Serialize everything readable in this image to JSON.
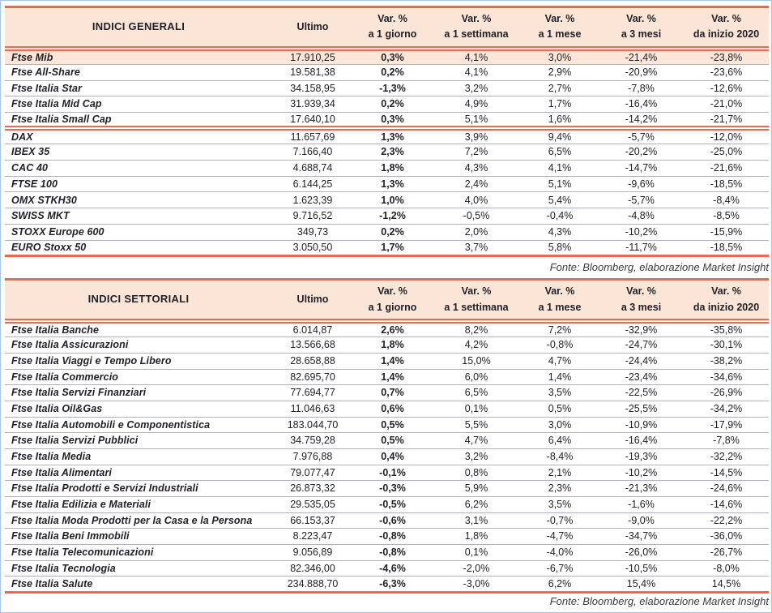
{
  "theme": {
    "accent": "#f2654f",
    "header_bg": "#fbe5d6",
    "highlight_bg": "#fbe6d8",
    "row_divider": "#aab3bf",
    "frame_border": "#a8c6e5",
    "text": "#212129",
    "source_text": "#3a3a42"
  },
  "tables": [
    {
      "title": "INDICI GENERALI",
      "headers": [
        "Ultimo",
        "Var. %\na 1 giorno",
        "Var. %\na 1 settimana",
        "Var. %\na 1 mese",
        "Var. %\na 3 mesi",
        "Var. %\nda inizio 2020"
      ],
      "source": "Fonte: Bloomberg, elaborazione Market Insight",
      "groups": [
        {
          "rows": [
            {
              "name": "Ftse Mib",
              "highlight": true,
              "values": [
                "17.910,25",
                "0,3%",
                "4,1%",
                "3,0%",
                "-21,4%",
                "-23,8%"
              ]
            },
            {
              "name": "Ftse All-Share",
              "values": [
                "19.581,38",
                "0,2%",
                "4,1%",
                "2,9%",
                "-20,9%",
                "-23,6%"
              ]
            },
            {
              "name": "Ftse Italia Star",
              "values": [
                "34.158,95",
                "-1,3%",
                "3,2%",
                "2,7%",
                "-7,8%",
                "-12,6%"
              ]
            },
            {
              "name": "Ftse Italia Mid Cap",
              "values": [
                "31.939,34",
                "0,2%",
                "4,9%",
                "1,7%",
                "-16,4%",
                "-21,0%"
              ]
            },
            {
              "name": "Ftse Italia Small Cap",
              "values": [
                "17.640,10",
                "0,3%",
                "5,1%",
                "1,6%",
                "-14,2%",
                "-21,7%"
              ]
            }
          ]
        },
        {
          "rows": [
            {
              "name": "DAX",
              "values": [
                "11.657,69",
                "1,3%",
                "3,9%",
                "9,4%",
                "-5,7%",
                "-12,0%"
              ]
            },
            {
              "name": "IBEX 35",
              "values": [
                "7.166,40",
                "2,3%",
                "7,2%",
                "6,5%",
                "-20,2%",
                "-25,0%"
              ]
            },
            {
              "name": "CAC 40",
              "values": [
                "4.688,74",
                "1,8%",
                "4,3%",
                "4,1%",
                "-14,7%",
                "-21,6%"
              ]
            },
            {
              "name": "FTSE 100",
              "values": [
                "6.144,25",
                "1,3%",
                "2,4%",
                "5,1%",
                "-9,6%",
                "-18,5%"
              ]
            },
            {
              "name": "OMX STKH30",
              "values": [
                "1.623,39",
                "1,0%",
                "4,0%",
                "5,4%",
                "-5,7%",
                "-8,4%"
              ]
            },
            {
              "name": "SWISS MKT",
              "values": [
                "9.716,52",
                "-1,2%",
                "-0,5%",
                "-0,4%",
                "-4,8%",
                "-8,5%"
              ]
            },
            {
              "name": "STOXX Europe 600",
              "values": [
                "349,73",
                "0,2%",
                "2,0%",
                "4,3%",
                "-10,2%",
                "-15,9%"
              ]
            },
            {
              "name": "EURO Stoxx 50",
              "values": [
                "3.050,50",
                "1,7%",
                "3,7%",
                "5,8%",
                "-11,7%",
                "-18,5%"
              ]
            }
          ]
        }
      ]
    },
    {
      "title": "INDICI SETTORIALI",
      "headers": [
        "Ultimo",
        "Var. %\na 1 giorno",
        "Var. %\na 1 settimana",
        "Var. %\na 1 mese",
        "Var. %\na 3 mesi",
        "Var. %\nda inizio 2020"
      ],
      "source": "Fonte: Bloomberg, elaborazione Market Insight",
      "groups": [
        {
          "rows": [
            {
              "name": "Ftse Italia Banche",
              "values": [
                "6.014,87",
                "2,6%",
                "8,2%",
                "7,2%",
                "-32,9%",
                "-35,8%"
              ]
            },
            {
              "name": "Ftse Italia Assicurazioni",
              "values": [
                "13.566,68",
                "1,8%",
                "4,2%",
                "-0,8%",
                "-24,7%",
                "-30,1%"
              ]
            },
            {
              "name": "Ftse Italia Viaggi e Tempo Libero",
              "values": [
                "28.658,88",
                "1,4%",
                "15,0%",
                "4,7%",
                "-24,4%",
                "-38,2%"
              ]
            },
            {
              "name": "Ftse Italia Commercio",
              "values": [
                "82.695,70",
                "1,4%",
                "6,0%",
                "1,4%",
                "-23,4%",
                "-34,6%"
              ]
            },
            {
              "name": "Ftse Italia Servizi Finanziari",
              "values": [
                "77.694,77",
                "0,7%",
                "6,5%",
                "3,5%",
                "-22,5%",
                "-26,9%"
              ]
            },
            {
              "name": "Ftse Italia Oil&Gas",
              "values": [
                "11.046,63",
                "0,6%",
                "0,1%",
                "0,5%",
                "-25,5%",
                "-34,2%"
              ]
            },
            {
              "name": "Ftse Italia Automobili e Componentistica",
              "values": [
                "183.044,70",
                "0,5%",
                "5,5%",
                "3,0%",
                "-10,9%",
                "-17,9%"
              ]
            },
            {
              "name": "Ftse Italia Servizi Pubblici",
              "values": [
                "34.759,28",
                "0,5%",
                "4,7%",
                "6,4%",
                "-16,4%",
                "-7,8%"
              ]
            },
            {
              "name": "Ftse Italia Media",
              "values": [
                "7.976,88",
                "0,4%",
                "3,2%",
                "-8,4%",
                "-19,3%",
                "-32,2%"
              ]
            },
            {
              "name": "Ftse Italia Alimentari",
              "values": [
                "79.077,47",
                "-0,1%",
                "0,8%",
                "2,1%",
                "-10,2%",
                "-14,5%"
              ]
            },
            {
              "name": "Ftse Italia Prodotti e Servizi Industriali",
              "values": [
                "26.873,32",
                "-0,3%",
                "5,9%",
                "2,3%",
                "-21,3%",
                "-24,6%"
              ]
            },
            {
              "name": "Ftse Italia Edilizia e Materiali",
              "values": [
                "29.535,05",
                "-0,5%",
                "6,2%",
                "3,5%",
                "-1,6%",
                "-14,6%"
              ]
            },
            {
              "name": "Ftse Italia Moda Prodotti per la Casa e la Persona",
              "values": [
                "66.153,37",
                "-0,6%",
                "3,1%",
                "-0,7%",
                "-9,0%",
                "-22,2%"
              ]
            },
            {
              "name": "Ftse Italia Beni Immobili",
              "values": [
                "8.223,47",
                "-0,8%",
                "1,8%",
                "-4,7%",
                "-34,7%",
                "-36,0%"
              ]
            },
            {
              "name": "Ftse Italia Telecomunicazioni",
              "values": [
                "9.056,89",
                "-0,8%",
                "0,1%",
                "-4,0%",
                "-26,0%",
                "-26,7%"
              ]
            },
            {
              "name": "Ftse Italia Tecnologia",
              "values": [
                "82.346,00",
                "-4,6%",
                "-2,0%",
                "-6,7%",
                "-10,5%",
                "-8,0%"
              ]
            },
            {
              "name": "Ftse Italia Salute",
              "values": [
                "234.888,70",
                "-6,3%",
                "-3,0%",
                "6,2%",
                "15,4%",
                "14,5%"
              ]
            }
          ]
        }
      ]
    }
  ]
}
